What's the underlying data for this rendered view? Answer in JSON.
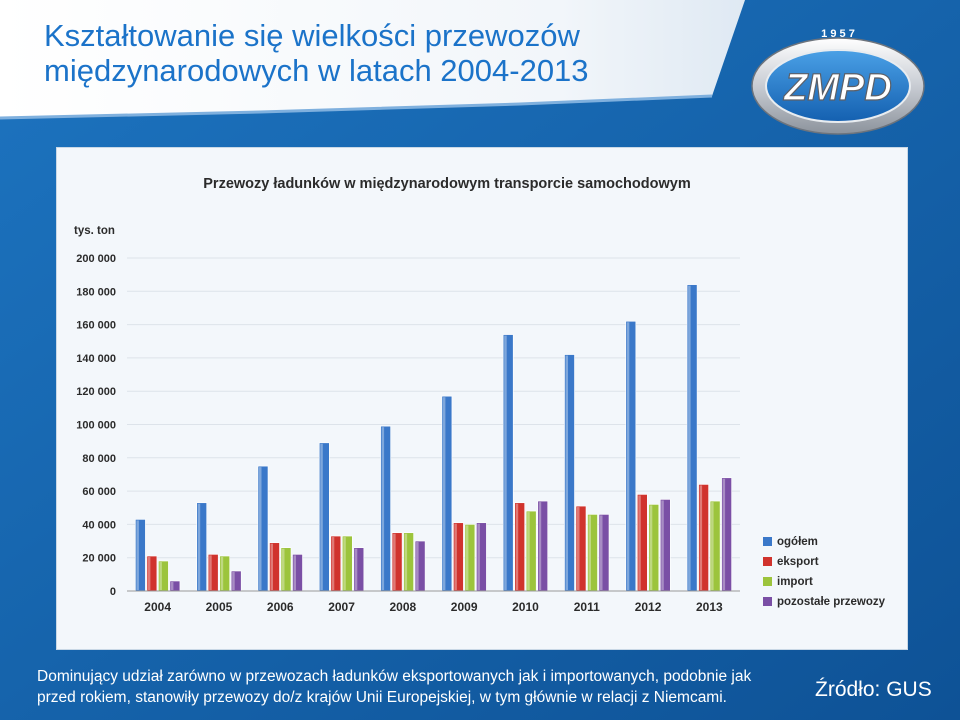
{
  "slide": {
    "title_line1": "Kształtowanie się wielkości przewozów",
    "title_line2": "międzynarodowych w latach 2004-2013",
    "logo_year": "1 9 5 7",
    "logo_text": "ZMPD",
    "caption_line1": "Dominujący udział zarówno w przewozach ładunków eksportowanych jak i importowanych, podobnie jak",
    "caption_line2": "przed rokiem, stanowiły przewozy do/z krajów Unii Europejskiej, w tym głównie w relacji z Niemcami.",
    "source": "Źródło: GUS"
  },
  "colors": {
    "title": "#1b73c9",
    "background": "#1565ad",
    "chart_background": "#f3f7fb"
  },
  "chart_data": {
    "type": "bar",
    "title": "Przewozy ładunków w międzynarodowym transporcie samochodowym",
    "ylabel": "tys. ton",
    "xlabel": "",
    "ylim": [
      0,
      200000
    ],
    "yticks": [
      0,
      20000,
      40000,
      60000,
      80000,
      100000,
      120000,
      140000,
      160000,
      180000,
      200000
    ],
    "ytick_labels": [
      "0",
      "20 000",
      "40 000",
      "60 000",
      "80 000",
      "100 000",
      "120 000",
      "140 000",
      "160 000",
      "180 000",
      "200 000"
    ],
    "categories": [
      "2004",
      "2005",
      "2006",
      "2007",
      "2008",
      "2009",
      "2010",
      "2011",
      "2012",
      "2013"
    ],
    "legend_position": "right",
    "series": [
      {
        "name": "ogółem",
        "color": "#3a78c9",
        "values": [
          43000,
          53000,
          75000,
          89000,
          99000,
          117000,
          154000,
          142000,
          162000,
          184000
        ]
      },
      {
        "name": "eksport",
        "color": "#d0332d",
        "values": [
          21000,
          22000,
          29000,
          33000,
          35000,
          41000,
          53000,
          51000,
          58000,
          64000
        ]
      },
      {
        "name": "import",
        "color": "#9cc43c",
        "values": [
          18000,
          21000,
          26000,
          33000,
          35000,
          40000,
          48000,
          46000,
          52000,
          54000
        ]
      },
      {
        "name": "pozostałe przewozy",
        "color": "#7a4fa5",
        "values": [
          6000,
          12000,
          22000,
          26000,
          30000,
          41000,
          54000,
          46000,
          55000,
          68000
        ]
      }
    ]
  }
}
